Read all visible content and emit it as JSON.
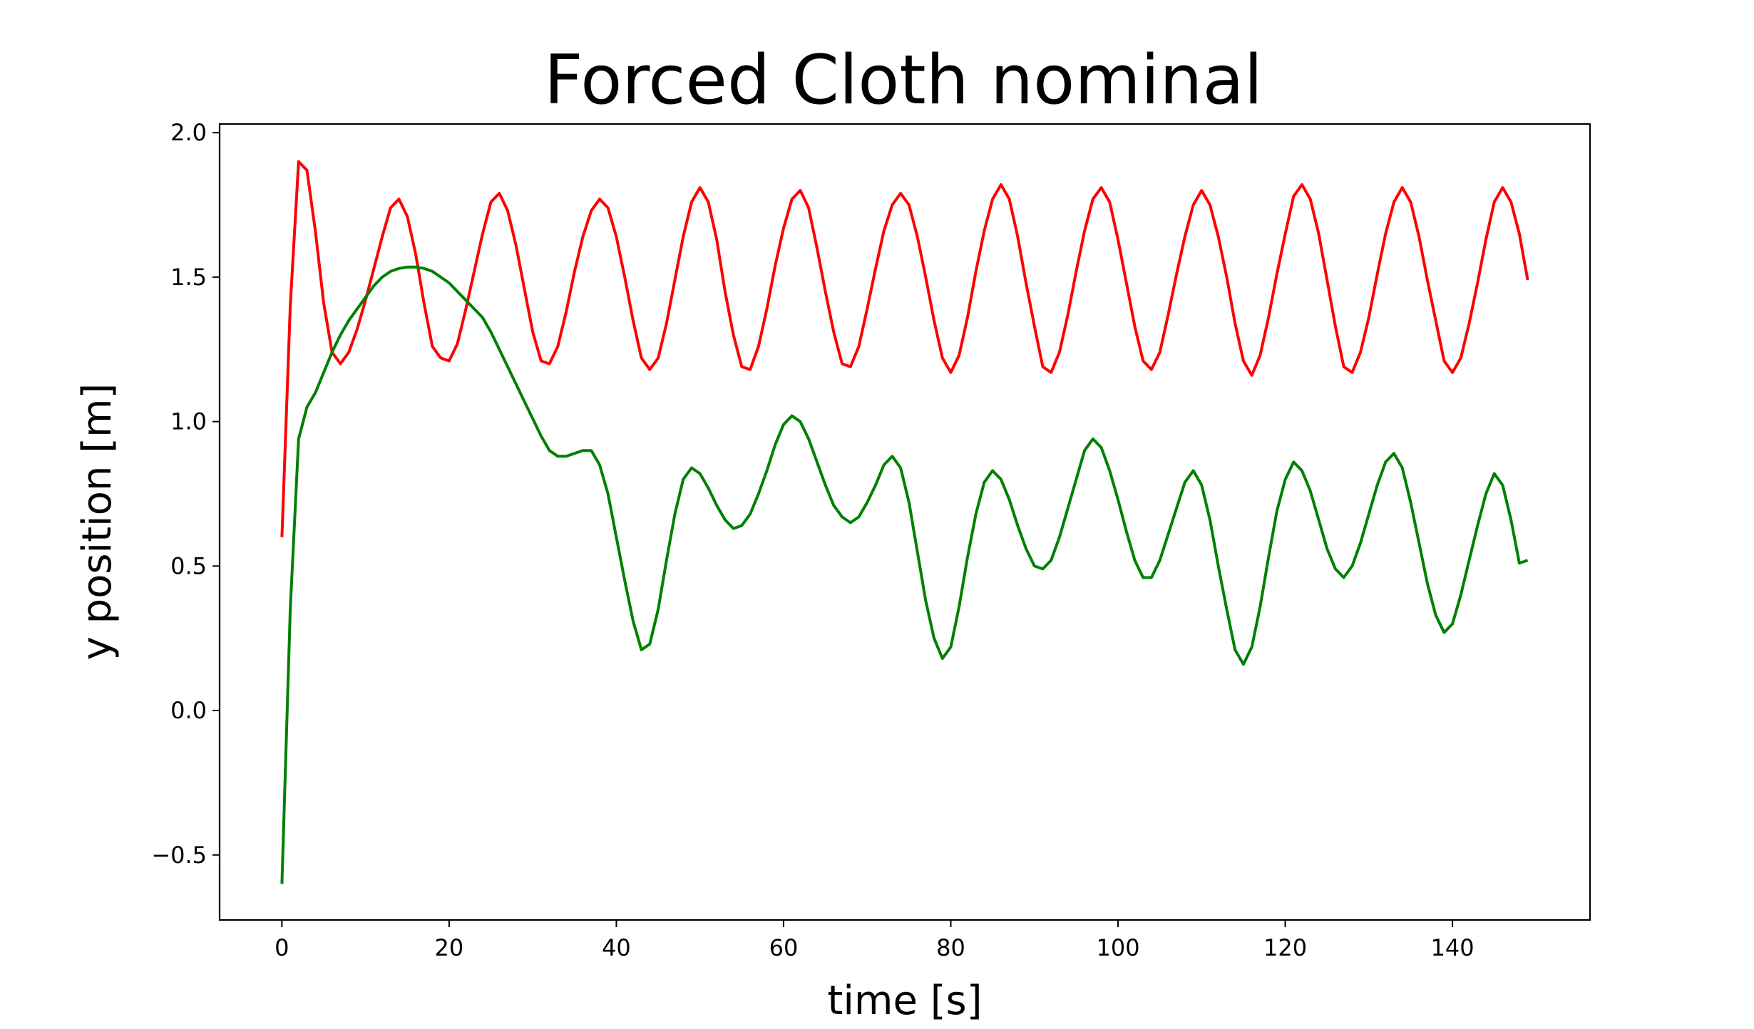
{
  "chart_data": {
    "type": "line",
    "title": "Forced Cloth nominal",
    "xlabel": "time [s]",
    "ylabel": "y position [m]",
    "xlim": [
      -7.45,
      156.45
    ],
    "ylim": [
      -0.725,
      2.03
    ],
    "xticks": [
      0,
      20,
      40,
      60,
      80,
      100,
      120,
      140
    ],
    "xtick_labels": [
      "0",
      "20",
      "40",
      "60",
      "80",
      "100",
      "120",
      "140"
    ],
    "yticks": [
      -0.5,
      0.0,
      0.5,
      1.0,
      1.5,
      2.0
    ],
    "ytick_labels": [
      "−0.5",
      "0.0",
      "0.5",
      "1.0",
      "1.5",
      "2.0"
    ],
    "grid": false,
    "legend": null,
    "series": [
      {
        "color": "#ff0000",
        "x": [
          0,
          1,
          2,
          3,
          4,
          5,
          6,
          7,
          8,
          9,
          10,
          11,
          12,
          13,
          14,
          15,
          16,
          17,
          18,
          19,
          20,
          21,
          22,
          23,
          24,
          25,
          26,
          27,
          28,
          29,
          30,
          31,
          32,
          33,
          34,
          35,
          36,
          37,
          38,
          39,
          40,
          41,
          42,
          43,
          44,
          45,
          46,
          47,
          48,
          49,
          50,
          51,
          52,
          53,
          54,
          55,
          56,
          57,
          58,
          59,
          60,
          61,
          62,
          63,
          64,
          65,
          66,
          67,
          68,
          69,
          70,
          71,
          72,
          73,
          74,
          75,
          76,
          77,
          78,
          79,
          80,
          81,
          82,
          83,
          84,
          85,
          86,
          87,
          88,
          89,
          90,
          91,
          92,
          93,
          94,
          95,
          96,
          97,
          98,
          99,
          100,
          101,
          102,
          103,
          104,
          105,
          106,
          107,
          108,
          109,
          110,
          111,
          112,
          113,
          114,
          115,
          116,
          117,
          118,
          119,
          120,
          121,
          122,
          123,
          124,
          125,
          126,
          127,
          128,
          129,
          130,
          131,
          132,
          133,
          134,
          135,
          136,
          137,
          138,
          139,
          140,
          141,
          142,
          143,
          144,
          145,
          146,
          147,
          148,
          149
        ],
        "y": [
          0.6,
          1.4,
          1.9,
          1.87,
          1.66,
          1.41,
          1.24,
          1.2,
          1.24,
          1.32,
          1.42,
          1.53,
          1.64,
          1.74,
          1.77,
          1.71,
          1.58,
          1.41,
          1.26,
          1.22,
          1.21,
          1.27,
          1.39,
          1.52,
          1.65,
          1.76,
          1.79,
          1.73,
          1.61,
          1.46,
          1.31,
          1.21,
          1.2,
          1.26,
          1.38,
          1.52,
          1.64,
          1.73,
          1.77,
          1.74,
          1.64,
          1.5,
          1.35,
          1.22,
          1.18,
          1.22,
          1.34,
          1.49,
          1.64,
          1.76,
          1.81,
          1.76,
          1.63,
          1.45,
          1.3,
          1.19,
          1.18,
          1.26,
          1.39,
          1.54,
          1.67,
          1.77,
          1.8,
          1.74,
          1.6,
          1.45,
          1.31,
          1.2,
          1.19,
          1.26,
          1.39,
          1.53,
          1.66,
          1.75,
          1.79,
          1.75,
          1.64,
          1.5,
          1.35,
          1.22,
          1.17,
          1.23,
          1.36,
          1.52,
          1.66,
          1.77,
          1.82,
          1.77,
          1.64,
          1.48,
          1.33,
          1.19,
          1.17,
          1.24,
          1.37,
          1.52,
          1.66,
          1.77,
          1.81,
          1.76,
          1.63,
          1.48,
          1.33,
          1.21,
          1.18,
          1.24,
          1.37,
          1.51,
          1.64,
          1.75,
          1.8,
          1.75,
          1.64,
          1.5,
          1.34,
          1.21,
          1.16,
          1.23,
          1.36,
          1.51,
          1.65,
          1.78,
          1.82,
          1.77,
          1.65,
          1.49,
          1.33,
          1.19,
          1.17,
          1.24,
          1.36,
          1.51,
          1.65,
          1.76,
          1.81,
          1.76,
          1.64,
          1.49,
          1.35,
          1.21,
          1.17,
          1.22,
          1.34,
          1.48,
          1.63,
          1.76,
          1.81,
          1.76,
          1.65,
          1.49
        ]
      },
      {
        "color": "#008000",
        "x": [
          0,
          1,
          2,
          3,
          4,
          5,
          6,
          7,
          8,
          9,
          10,
          11,
          12,
          13,
          14,
          15,
          16,
          17,
          18,
          19,
          20,
          21,
          22,
          23,
          24,
          25,
          26,
          27,
          28,
          29,
          30,
          31,
          32,
          33,
          34,
          35,
          36,
          37,
          38,
          39,
          40,
          41,
          42,
          43,
          44,
          45,
          46,
          47,
          48,
          49,
          50,
          51,
          52,
          53,
          54,
          55,
          56,
          57,
          58,
          59,
          60,
          61,
          62,
          63,
          64,
          65,
          66,
          67,
          68,
          69,
          70,
          71,
          72,
          73,
          74,
          75,
          76,
          77,
          78,
          79,
          80,
          81,
          82,
          83,
          84,
          85,
          86,
          87,
          88,
          89,
          90,
          91,
          92,
          93,
          94,
          95,
          96,
          97,
          98,
          99,
          100,
          101,
          102,
          103,
          104,
          105,
          106,
          107,
          108,
          109,
          110,
          111,
          112,
          113,
          114,
          115,
          116,
          117,
          118,
          119,
          120,
          121,
          122,
          123,
          124,
          125,
          126,
          127,
          128,
          129,
          130,
          131,
          132,
          133,
          134,
          135,
          136,
          137,
          138,
          139,
          140,
          141,
          142,
          143,
          144,
          145,
          146,
          147,
          148,
          149
        ],
        "y": [
          -0.6,
          0.35,
          0.94,
          1.05,
          1.1,
          1.17,
          1.24,
          1.3,
          1.35,
          1.39,
          1.43,
          1.47,
          1.5,
          1.52,
          1.53,
          1.535,
          1.535,
          1.53,
          1.52,
          1.5,
          1.48,
          1.45,
          1.42,
          1.39,
          1.36,
          1.31,
          1.25,
          1.19,
          1.13,
          1.07,
          1.01,
          0.95,
          0.9,
          0.88,
          0.88,
          0.89,
          0.9,
          0.9,
          0.85,
          0.75,
          0.6,
          0.45,
          0.31,
          0.21,
          0.23,
          0.35,
          0.52,
          0.68,
          0.8,
          0.84,
          0.82,
          0.77,
          0.71,
          0.66,
          0.63,
          0.64,
          0.68,
          0.75,
          0.83,
          0.92,
          0.99,
          1.02,
          1.0,
          0.94,
          0.86,
          0.78,
          0.71,
          0.67,
          0.65,
          0.67,
          0.72,
          0.78,
          0.85,
          0.88,
          0.84,
          0.72,
          0.55,
          0.38,
          0.25,
          0.18,
          0.22,
          0.36,
          0.53,
          0.68,
          0.79,
          0.83,
          0.8,
          0.73,
          0.64,
          0.56,
          0.5,
          0.49,
          0.52,
          0.6,
          0.7,
          0.8,
          0.9,
          0.94,
          0.91,
          0.83,
          0.73,
          0.62,
          0.52,
          0.46,
          0.46,
          0.52,
          0.61,
          0.7,
          0.79,
          0.83,
          0.78,
          0.66,
          0.5,
          0.35,
          0.21,
          0.16,
          0.22,
          0.36,
          0.53,
          0.69,
          0.8,
          0.86,
          0.83,
          0.76,
          0.66,
          0.56,
          0.49,
          0.46,
          0.5,
          0.58,
          0.68,
          0.78,
          0.86,
          0.89,
          0.84,
          0.72,
          0.58,
          0.44,
          0.33,
          0.27,
          0.3,
          0.4,
          0.52,
          0.64,
          0.75,
          0.82,
          0.78,
          0.66,
          0.51,
          0.52
        ]
      }
    ]
  }
}
